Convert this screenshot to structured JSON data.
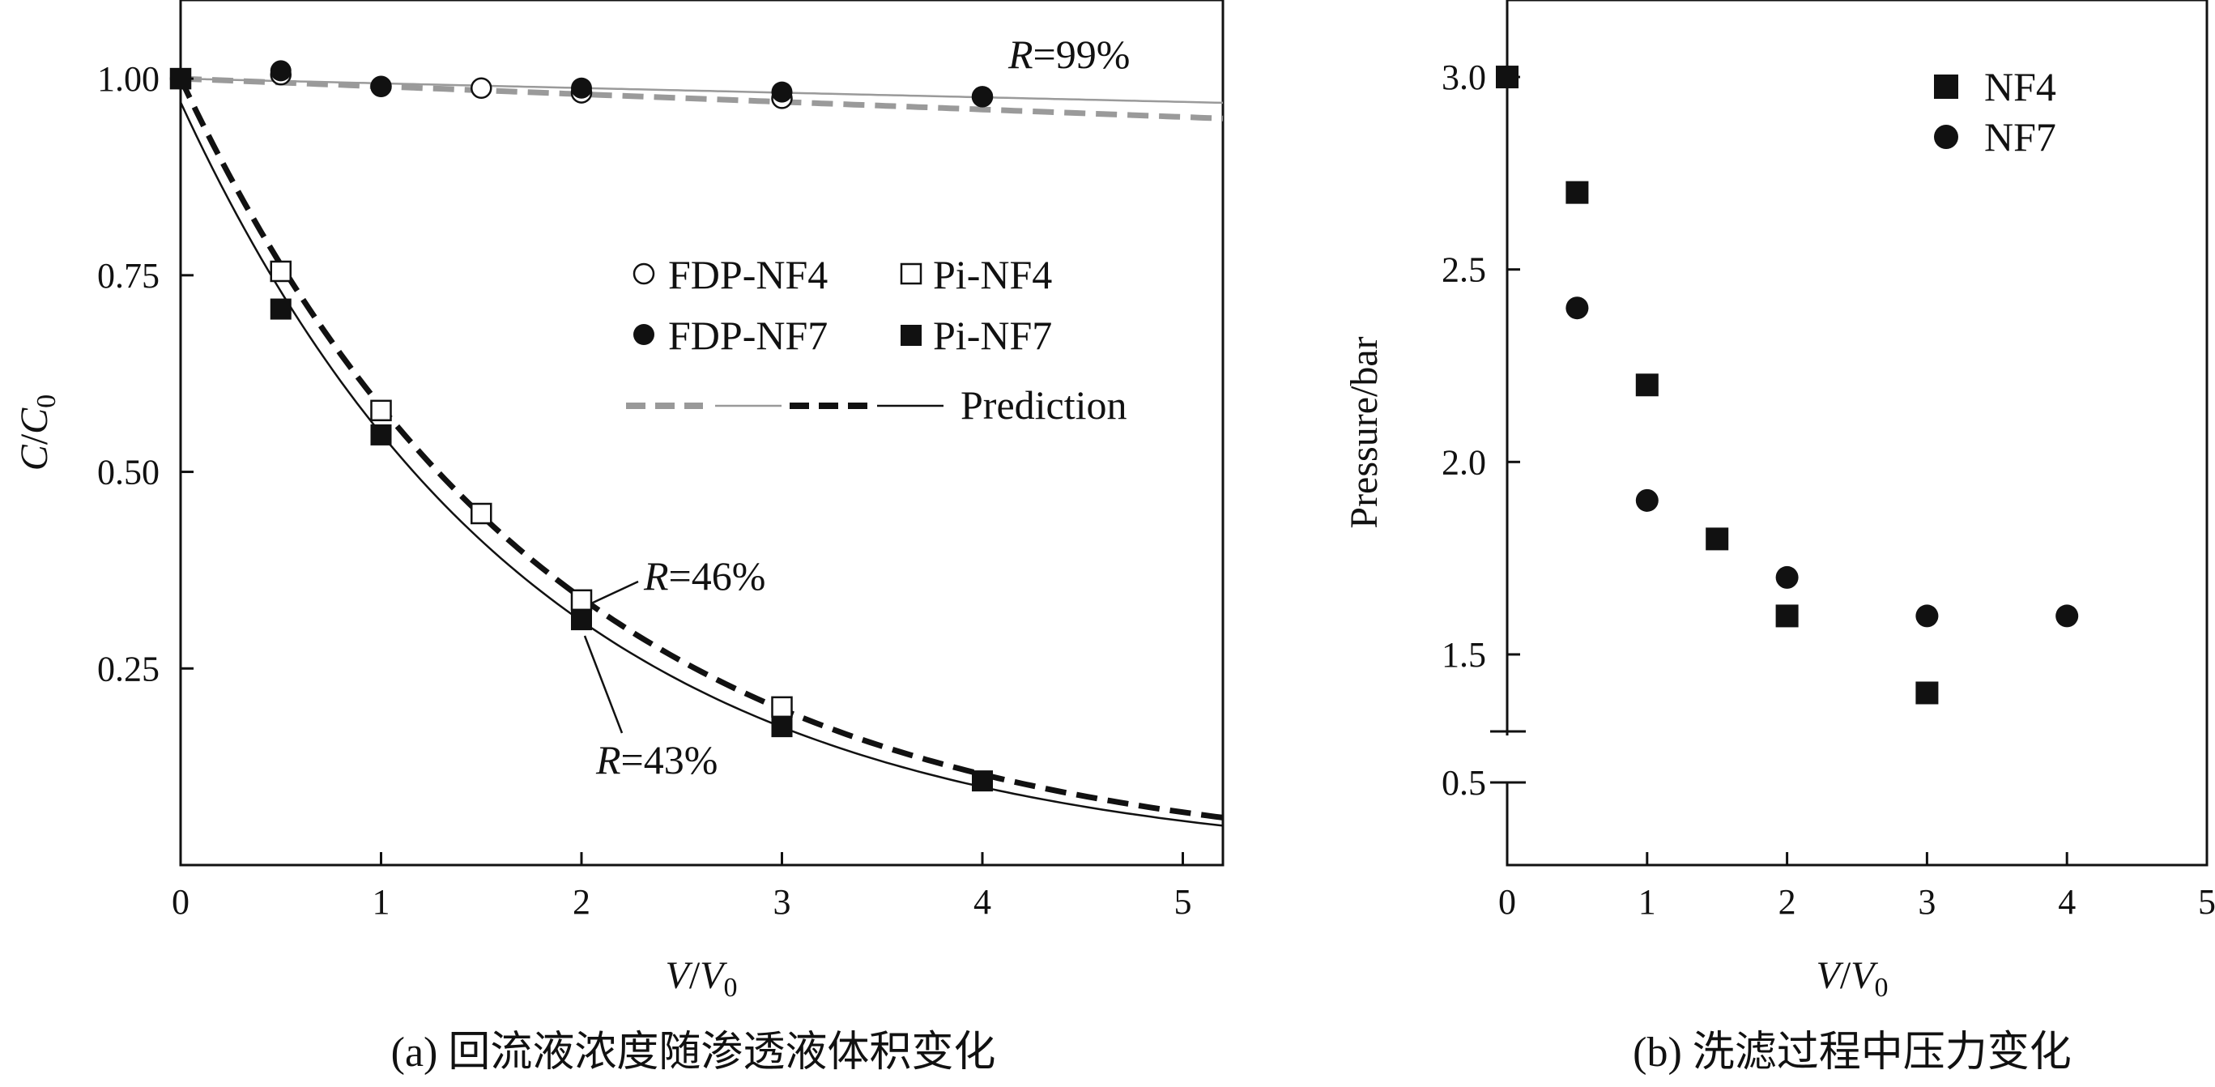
{
  "chart_data": [
    {
      "id": "a",
      "type": "scatter",
      "caption": "(a) 回流液浓度随渗透液体积变化",
      "xlabel": "V/V0",
      "ylabel": "C/C0",
      "xlim": [
        0,
        5.2
      ],
      "ylim": [
        0,
        1.1
      ],
      "xticks": [
        0,
        1,
        2,
        3,
        4,
        5
      ],
      "xtick_labels": [
        "0",
        "1",
        "2",
        "3",
        "4",
        "5"
      ],
      "yticks": [
        0.25,
        0.5,
        0.75,
        1.0
      ],
      "ytick_labels": [
        "0.25",
        "0.50",
        "0.75",
        "1.00"
      ],
      "series": [
        {
          "name": "FDP-NF4",
          "marker": "circle-open",
          "x": [
            0,
            0.5,
            1,
            1.5,
            2,
            3,
            4
          ],
          "y": [
            1.0,
            1.005,
            0.99,
            0.988,
            0.982,
            0.975,
            0.977
          ]
        },
        {
          "name": "FDP-NF7",
          "marker": "circle-filled",
          "x": [
            0,
            0.5,
            1,
            2,
            3,
            4
          ],
          "y": [
            1.0,
            1.01,
            0.99,
            0.988,
            0.983,
            0.977
          ]
        },
        {
          "name": "Pi-NF4",
          "marker": "square-open",
          "x": [
            0,
            0.5,
            1,
            1.5,
            2,
            3
          ],
          "y": [
            1.0,
            0.755,
            0.578,
            0.447,
            0.337,
            0.201
          ]
        },
        {
          "name": "Pi-NF7",
          "marker": "square-filled",
          "x": [
            0,
            0.5,
            1,
            2,
            3,
            4
          ],
          "y": [
            1.0,
            0.707,
            0.547,
            0.312,
            0.176,
            0.107
          ]
        }
      ],
      "prediction_curves": [
        {
          "style": "gray-dashed",
          "R": 0.99,
          "C0": 1.0
        },
        {
          "style": "gray-thin",
          "R": 0.994,
          "C0": 1.0
        },
        {
          "style": "black-dashed",
          "R": 0.46,
          "C0": 1.0
        },
        {
          "style": "black-thin",
          "R": 0.43,
          "C0": 0.97
        }
      ],
      "legend": {
        "placement": "center-right",
        "entries": [
          "FDP-NF4",
          "Pi-NF4",
          "FDP-NF7",
          "Pi-NF7"
        ],
        "prediction_label": "Prediction"
      },
      "annotations": [
        {
          "text_italic": "R",
          "text_rest": "=99%"
        },
        {
          "text_italic": "R",
          "text_rest": "=46%"
        },
        {
          "text_italic": "R",
          "text_rest": "=43%"
        }
      ]
    },
    {
      "id": "b",
      "type": "scatter",
      "caption": "(b) 洗滤过程中压力变化",
      "xlabel": "V/V0",
      "ylabel": "Pressure/bar",
      "xlim": [
        0,
        5
      ],
      "ylim": [
        0.2,
        3.2
      ],
      "axis_break": {
        "low": 0.6,
        "high": 1.3
      },
      "xticks": [
        0,
        1,
        2,
        3,
        4,
        5
      ],
      "xtick_labels": [
        "0",
        "1",
        "2",
        "3",
        "4",
        "5"
      ],
      "yticks": [
        0.5,
        1.5,
        2.0,
        2.5,
        3.0
      ],
      "ytick_labels": [
        "0.5",
        "1.5",
        "2.0",
        "2.5",
        "3.0"
      ],
      "series": [
        {
          "name": "NF4",
          "marker": "square-filled",
          "x": [
            0,
            0.5,
            1,
            1.5,
            2,
            3
          ],
          "y": [
            3.0,
            2.7,
            2.2,
            1.8,
            1.6,
            1.4
          ]
        },
        {
          "name": "NF7",
          "marker": "circle-filled",
          "x": [
            0,
            0.5,
            1,
            2,
            3,
            4
          ],
          "y": [
            3.0,
            2.4,
            1.9,
            1.7,
            1.6,
            1.6
          ]
        }
      ],
      "legend": {
        "placement": "top-right",
        "entries": [
          "NF4",
          "NF7"
        ]
      }
    }
  ]
}
